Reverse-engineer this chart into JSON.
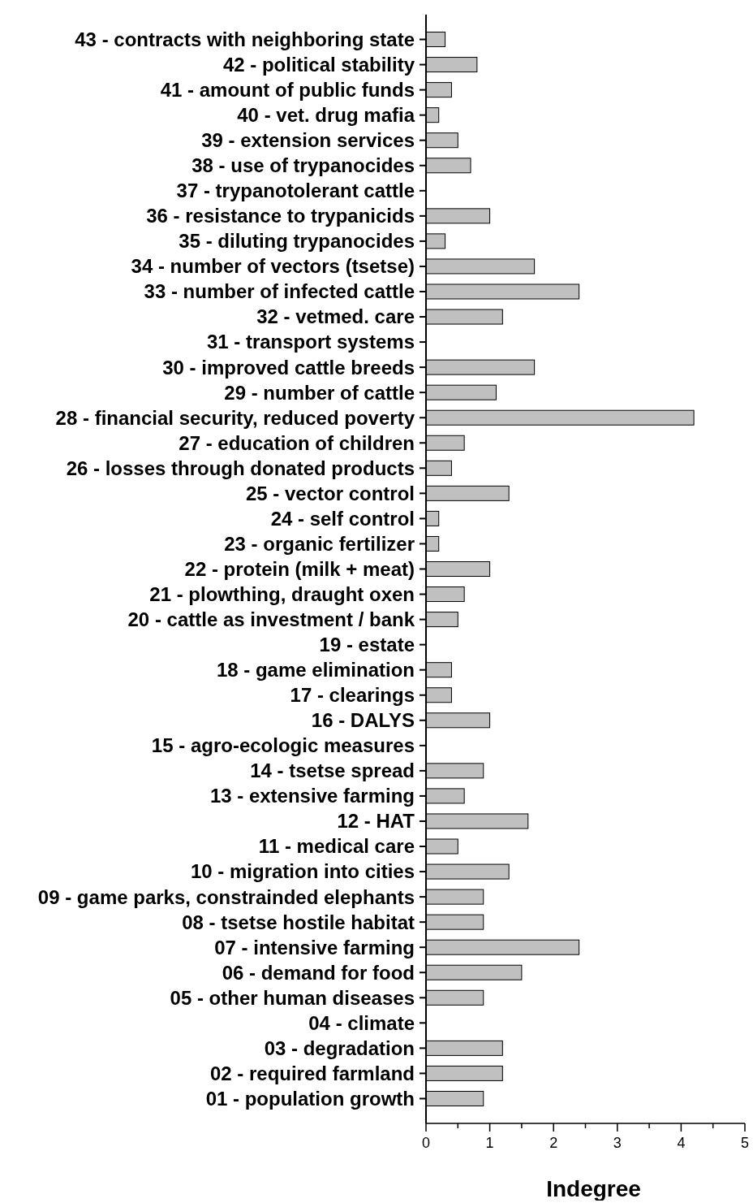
{
  "chart_data": {
    "type": "bar",
    "orientation": "horizontal",
    "xlabel": "Indegree",
    "categories": [
      "43 - contracts with neighboring state",
      "42 - political stability",
      "41 - amount of public funds",
      "40 - vet. drug mafia",
      "39 - extension services",
      "38 - use of trypanocides",
      "37 - trypanotolerant cattle",
      "36 - resistance to trypanicids",
      "35 - diluting trypanocides",
      "34 - number of vectors (tsetse)",
      "33 - number of infected cattle",
      "32 - vetmed. care",
      "31 - transport systems",
      "30 - improved cattle breeds",
      "29 - number of cattle",
      "28 - financial security, reduced poverty",
      "27 - education of children",
      "26 - losses through donated products",
      "25 - vector control",
      "24 - self control",
      "23 - organic fertilizer",
      "22 - protein (milk + meat)",
      "21 - plowthing, draught oxen",
      "20 - cattle as investment / bank",
      "19 - estate",
      "18 - game elimination",
      "17 - clearings",
      "16 - DALYS",
      "15 - agro-ecologic measures",
      "14 - tsetse spread",
      "13 - extensive farming",
      "12 - HAT",
      "11 - medical care",
      "10 - migration into cities",
      "09 - game parks, constrainded elephants",
      "08 - tsetse hostile habitat",
      "07 - intensive farming",
      "06 - demand for food",
      "05 - other human diseases",
      "04 - climate",
      "03 - degradation",
      "02 - required farmland",
      "01 - population growth"
    ],
    "values": [
      0.3,
      0.8,
      0.4,
      0.2,
      0.5,
      0.7,
      0,
      1.0,
      0.3,
      1.7,
      2.4,
      1.2,
      0,
      1.7,
      1.1,
      4.2,
      0.6,
      0.4,
      1.3,
      0.2,
      0.2,
      1.0,
      0.6,
      0.5,
      0,
      0.4,
      0.4,
      1.0,
      0,
      0.9,
      0.6,
      1.6,
      0.5,
      1.3,
      0.9,
      0.9,
      2.4,
      1.5,
      0.9,
      0,
      1.2,
      1.2,
      0.9
    ],
    "color": "#c0c0c0",
    "xlim": [
      0,
      5
    ],
    "xticks": [
      0,
      {
        "value": 0.5,
        "label": null
      },
      1,
      {
        "value": 1.5,
        "label": null
      },
      2,
      {
        "value": 2.5,
        "label": null
      },
      3,
      {
        "value": 3.5,
        "label": null
      },
      4,
      {
        "value": 4.5,
        "label": null
      },
      5
    ],
    "grid": false
  }
}
